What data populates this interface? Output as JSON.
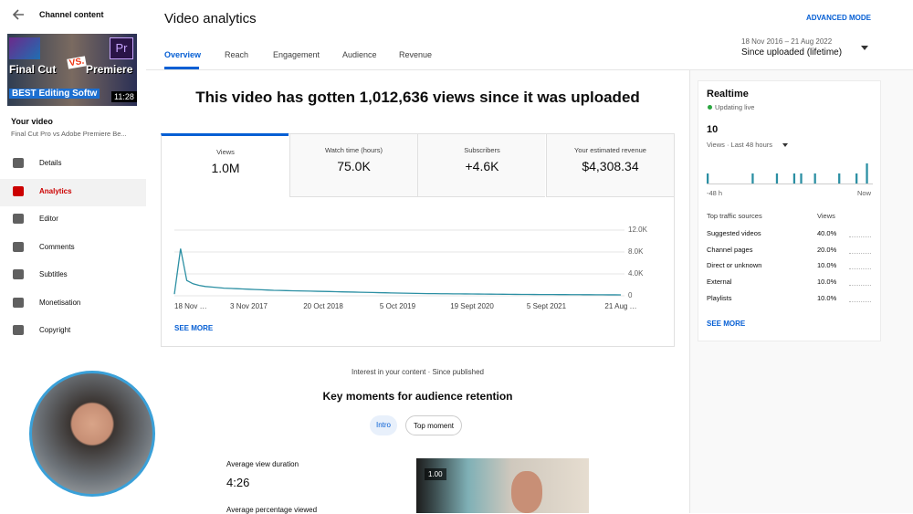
{
  "sidebar": {
    "title": "Channel content",
    "thumbnail": {
      "left": "Final Cut",
      "vs": "VS.",
      "right": "Premiere",
      "logo": "Pr",
      "bottom": "BEST Editing Softw",
      "duration": "11:28"
    },
    "your_video": "Your video",
    "video_title": "Final Cut Pro vs Adobe Premiere  Be...",
    "nav": [
      "Details",
      "Analytics",
      "Editor",
      "Comments",
      "Subtitles",
      "Monetisation",
      "Copyright"
    ]
  },
  "header": {
    "title": "Video analytics",
    "advanced": "ADVANCED MODE",
    "tabs": [
      "Overview",
      "Reach",
      "Engagement",
      "Audience",
      "Revenue"
    ],
    "date_range": "18 Nov 2016 – 21 Aug 2022",
    "period": "Since uploaded (lifetime)"
  },
  "headline": "This video has gotten 1,012,636 views since it was uploaded",
  "metric_cards": [
    {
      "label": "Views",
      "value": "1.0M"
    },
    {
      "label": "Watch time (hours)",
      "value": "75.0K"
    },
    {
      "label": "Subscribers",
      "value": "+4.6K"
    },
    {
      "label": "Your estimated revenue",
      "value": "$4,308.34"
    }
  ],
  "chart_data": {
    "type": "line",
    "x": [
      "18 Nov …",
      null,
      null,
      null,
      null,
      null,
      null,
      null,
      null,
      null,
      null,
      null,
      "3 Nov 2017",
      null,
      null,
      null,
      null,
      null,
      null,
      null,
      null,
      null,
      null,
      null,
      "20 Oct 2018",
      null,
      null,
      null,
      null,
      null,
      null,
      null,
      null,
      null,
      null,
      null,
      "5 Oct 2019",
      null,
      null,
      null,
      null,
      null,
      null,
      null,
      null,
      null,
      null,
      null,
      "19 Sept 2020",
      null,
      null,
      null,
      null,
      null,
      null,
      null,
      null,
      null,
      null,
      null,
      "5 Sept 2021",
      null,
      null,
      null,
      null,
      null,
      null,
      null,
      null,
      null,
      null,
      null,
      "21 Aug …"
    ],
    "series": [
      {
        "name": "Views",
        "color": "#2b8fa3",
        "values": [
          300,
          8600,
          2800,
          2200,
          1900,
          1700,
          1600,
          1500,
          1400,
          1350,
          1300,
          1250,
          1200,
          1150,
          1100,
          1050,
          1000,
          980,
          950,
          920,
          900,
          870,
          850,
          820,
          800,
          780,
          750,
          720,
          700,
          680,
          650,
          620,
          600,
          570,
          550,
          520,
          500,
          480,
          460,
          440,
          420,
          400,
          390,
          380,
          370,
          360,
          350,
          340,
          330,
          320,
          310,
          300,
          290,
          280,
          270,
          260,
          250,
          245,
          240,
          235,
          230,
          225,
          220,
          215,
          210,
          205,
          200,
          195,
          190,
          185,
          180,
          175,
          170
        ]
      }
    ],
    "ylim": [
      0,
      12000
    ],
    "yticks": [
      0,
      {
        "value": 4000,
        "label": "4.0K"
      },
      {
        "value": 8000,
        "label": "8.0K"
      },
      {
        "value": 12000,
        "label": "12.0K"
      }
    ],
    "grid": true
  },
  "see_more": "SEE MORE",
  "realtime": {
    "title": "Realtime",
    "status": "Updating live",
    "count": "10",
    "subtitle": "Views · Last 48 hours",
    "bars": [
      1,
      0,
      0,
      0,
      0,
      0,
      0,
      0,
      0,
      0,
      0,
      0,
      0,
      1,
      0,
      0,
      0,
      0,
      0,
      0,
      1,
      0,
      0,
      0,
      0,
      1,
      0,
      1,
      0,
      0,
      0,
      1,
      0,
      0,
      0,
      0,
      0,
      0,
      1,
      0,
      0,
      0,
      0,
      1,
      0,
      0,
      2,
      0
    ],
    "start_label": "-48 h",
    "end_label": "Now",
    "sources_title": "Top traffic sources",
    "sources_col": "Views",
    "sources": [
      [
        "Suggested videos",
        "40.0%"
      ],
      [
        "Channel pages",
        "20.0%"
      ],
      [
        "Direct or unknown",
        "10.0%"
      ],
      [
        "External",
        "10.0%"
      ],
      [
        "Playlists",
        "10.0%"
      ]
    ],
    "see_more": "SEE MORE"
  },
  "retention": {
    "caption": "Interest in your content · Since published",
    "title": "Key moments for audience retention",
    "chips": [
      "Intro",
      "Top moment"
    ],
    "avg_duration_label": "Average view duration",
    "avg_duration": "4:26",
    "avg_percent_label": "Average percentage viewed",
    "preview_tag": "1.00"
  }
}
